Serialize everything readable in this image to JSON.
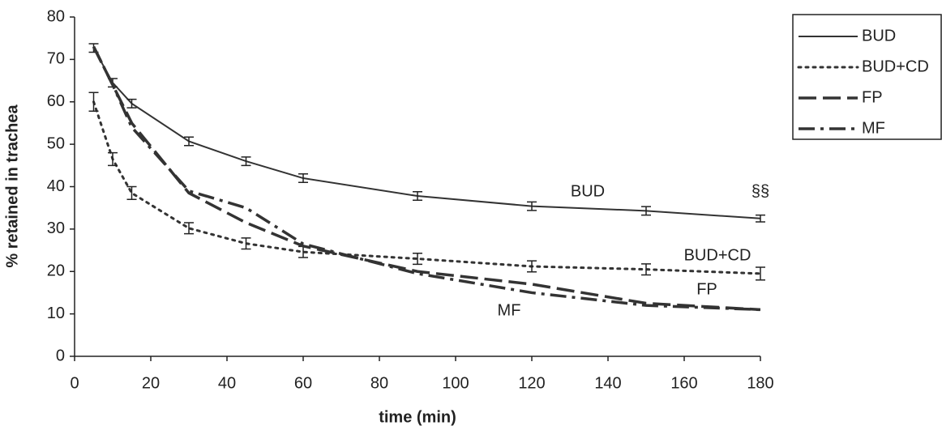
{
  "chart_data": {
    "type": "line",
    "x_label": "time (min)",
    "y_label": "% retained in trachea",
    "x": [
      5,
      10,
      15,
      30,
      45,
      60,
      90,
      120,
      150,
      180
    ],
    "xlim": [
      0,
      180
    ],
    "xticks": [
      0,
      20,
      40,
      60,
      80,
      100,
      120,
      140,
      160,
      180
    ],
    "ylim": [
      0,
      80
    ],
    "yticks": [
      0,
      10,
      20,
      30,
      40,
      50,
      60,
      70,
      80
    ],
    "legend": "right",
    "series": [
      {
        "name": "BUD",
        "color": "#333333",
        "style": "solid",
        "values": [
          72.7,
          64.5,
          59.6,
          50.7,
          46,
          42,
          37.8,
          35.4,
          34.3,
          32.5
        ],
        "errors": [
          1,
          1,
          1,
          1,
          1,
          1,
          1,
          1,
          1,
          0.8
        ]
      },
      {
        "name": "BUD+CD",
        "color": "#333333",
        "style": "dotted",
        "values": [
          60,
          46.5,
          38.5,
          30.2,
          26.6,
          24.6,
          23,
          21.2,
          20.5,
          19.5
        ],
        "errors": [
          2.2,
          1.5,
          1.5,
          1.3,
          1.3,
          1.3,
          1.3,
          1.3,
          1.3,
          1.5
        ]
      },
      {
        "name": "FP",
        "color": "#333333",
        "style": "dashed",
        "values": [
          73,
          64,
          55,
          38.5,
          31.5,
          26,
          20,
          17,
          12.5,
          11
        ]
      },
      {
        "name": "MF",
        "color": "#333333",
        "style": "dashdot",
        "values": [
          73,
          64,
          54,
          39,
          35,
          26.5,
          19.5,
          15,
          12,
          11
        ]
      }
    ],
    "annotations": [
      "BUD",
      "§§",
      "BUD+CD",
      "FP",
      "MF"
    ]
  }
}
